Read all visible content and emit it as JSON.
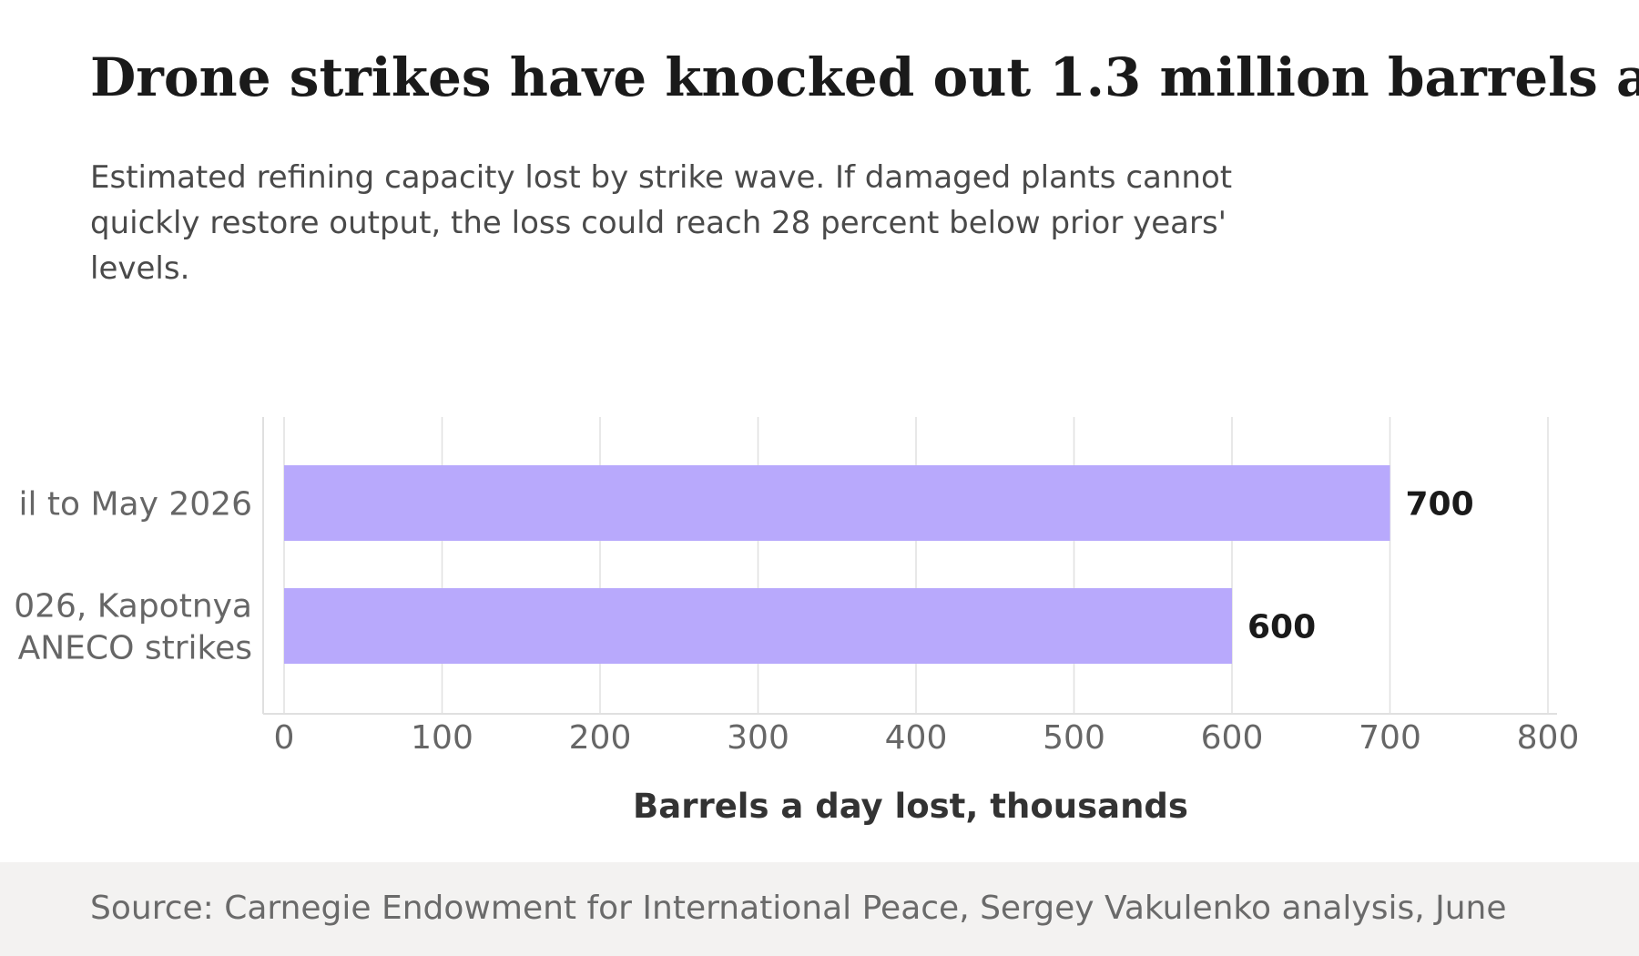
{
  "header": {
    "title": "Drone strikes have knocked out 1.3 million barrels a",
    "subtitle": "Estimated refining capacity lost by strike wave. If damaged plants cannot quickly restore output, the loss could reach 28 percent below prior years' levels."
  },
  "footer": {
    "source": "Source: Carnegie Endowment for International Peace, Sergey Vakulenko analysis, June"
  },
  "chart_data": {
    "type": "bar",
    "orientation": "horizontal",
    "categories": [
      [
        "il to May 2026"
      ],
      [
        "026, Kapotnya",
        "ANECO strikes"
      ]
    ],
    "values": [
      700,
      600
    ],
    "data_labels": [
      "700",
      "600"
    ],
    "xlabel": "Barrels a day lost, thousands",
    "xlim": [
      0,
      800
    ],
    "xticks": [
      0,
      100,
      200,
      300,
      400,
      500,
      600,
      700,
      800
    ],
    "grid": "vertical",
    "colors": {
      "bar": "#b8a9fc",
      "grid": "#e0e0e0",
      "tick": "#666666",
      "axis_title": "#333333",
      "data_label": "#1a1a1a"
    }
  }
}
